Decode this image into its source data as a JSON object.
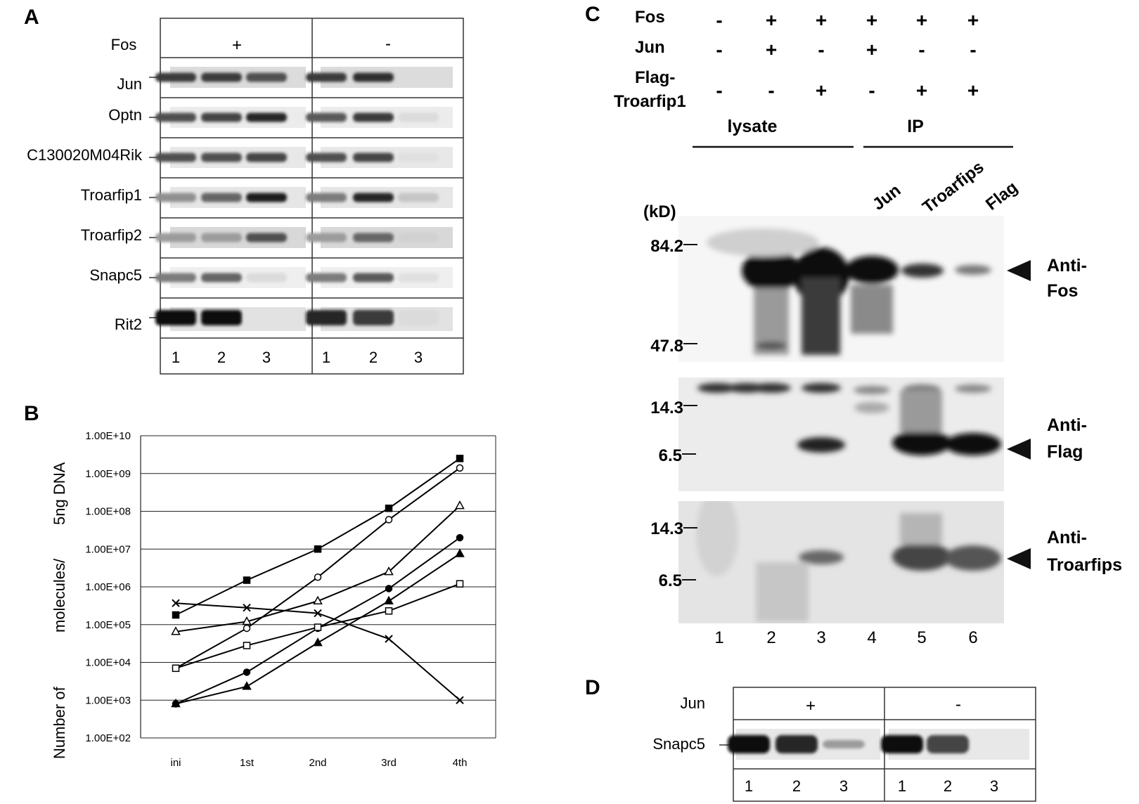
{
  "panel_a": {
    "letter": "A",
    "header_label": "Fos",
    "header_values": [
      "+",
      "-"
    ],
    "rows": [
      "Jun",
      "Optn",
      "C130020M04Rik",
      "Troarfip1",
      "Troarfip2",
      "Snapc5",
      "Rit2"
    ],
    "lanes": [
      "1",
      "2",
      "3",
      "1",
      "2",
      "3"
    ],
    "bands": [
      [
        0.8,
        0.8,
        0.7,
        0.8,
        0.85,
        0.0
      ],
      [
        0.7,
        0.75,
        0.9,
        0.65,
        0.8,
        0.05
      ],
      [
        0.7,
        0.7,
        0.75,
        0.7,
        0.75,
        0.03
      ],
      [
        0.4,
        0.6,
        0.95,
        0.5,
        0.9,
        0.15
      ],
      [
        0.35,
        0.35,
        0.7,
        0.35,
        0.6,
        0.1
      ],
      [
        0.5,
        0.6,
        0.05,
        0.5,
        0.65,
        0.03
      ],
      [
        1.0,
        1.0,
        0.02,
        0.9,
        0.8,
        0.05
      ]
    ]
  },
  "panel_b": {
    "letter": "B",
    "ylabel_parts": [
      "Number of",
      "molecules/",
      "5ng DNA"
    ]
  },
  "chart_data": {
    "type": "line",
    "categories": [
      "ini",
      "1st",
      "2nd",
      "3rd",
      "4th"
    ],
    "y_tick_labels": [
      "1.00E+02",
      "1.00E+03",
      "1.00E+04",
      "1.00E+05",
      "1.00E+06",
      "1.00E+07",
      "1.00E+08",
      "1.00E+09",
      "1.00E+10"
    ],
    "ylim": [
      100,
      10000000000
    ],
    "yscale": "log",
    "grid": true,
    "xlabel": "",
    "ylabel": "Number of molecules/ 5ng DNA",
    "series": [
      {
        "marker": "filled-square",
        "values": [
          180000,
          1500000,
          10000000,
          120000000,
          2500000000
        ]
      },
      {
        "marker": "open-circle",
        "values": [
          7000,
          80000,
          1800000,
          60000000,
          1400000000
        ]
      },
      {
        "marker": "open-triangle",
        "values": [
          65000,
          120000,
          420000,
          2500000,
          140000000
        ]
      },
      {
        "marker": "filled-circle",
        "values": [
          800,
          5500,
          80000,
          900000,
          20000000
        ]
      },
      {
        "marker": "filled-triangle",
        "values": [
          800,
          2300,
          33000,
          420000,
          7500000
        ]
      },
      {
        "marker": "open-square",
        "values": [
          7000,
          28000,
          85000,
          230000,
          1200000
        ]
      },
      {
        "marker": "cross",
        "values": [
          370000,
          280000,
          200000,
          42000,
          1000
        ]
      }
    ]
  },
  "panel_c": {
    "letter": "C",
    "conditions": [
      {
        "label": "Fos",
        "values": [
          "-",
          "+",
          "+",
          "+",
          "+",
          "+"
        ]
      },
      {
        "label": "Jun",
        "values": [
          "-",
          "+",
          "-",
          "+",
          "-",
          "-"
        ]
      },
      {
        "label": [
          "Flag-",
          "Troarfip1"
        ],
        "values": [
          "-",
          "-",
          "+",
          "-",
          "+",
          "+"
        ]
      }
    ],
    "groups": [
      "lysate",
      "IP"
    ],
    "ip_labels": [
      "Jun",
      "Troarfips",
      "Flag"
    ],
    "kd_label": "(kD)",
    "markers_top": [
      "84.2",
      "47.8"
    ],
    "markers_mid": [
      "14.3",
      "6.5"
    ],
    "markers_bot": [
      "14.3",
      "6.5"
    ],
    "antibodies": [
      [
        "Anti-",
        "Fos"
      ],
      [
        "Anti-",
        "Flag"
      ],
      [
        "Anti-",
        "Troarfips"
      ]
    ],
    "lanes": [
      "1",
      "2",
      "3",
      "4",
      "5",
      "6"
    ]
  },
  "panel_d": {
    "letter": "D",
    "header_label": "Jun",
    "header_values": [
      "+",
      "-"
    ],
    "row_label": "Snapc5",
    "lanes": [
      "1",
      "2",
      "3",
      "1",
      "2",
      "3"
    ],
    "bands": [
      1.0,
      0.9,
      0.35,
      1.0,
      0.75,
      0.05
    ]
  }
}
